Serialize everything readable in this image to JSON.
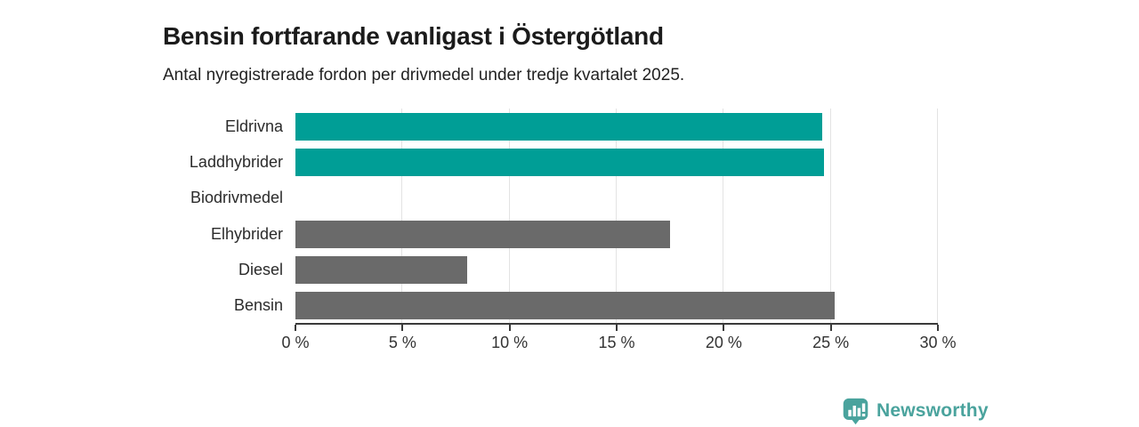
{
  "title": "Bensin fortfarande vanligast i Östergötland",
  "subtitle": "Antal nyregistrerade fordon per drivmedel under tredje kvartalet 2025.",
  "chart_data": {
    "type": "bar",
    "orientation": "horizontal",
    "title": "Bensin fortfarande vanligast i Östergötland",
    "subtitle": "Antal nyregistrerade fordon per drivmedel under tredje kvartalet 2025.",
    "categories": [
      "Eldrivna",
      "Laddhybrider",
      "Biodrivmedel",
      "Elhybrider",
      "Diesel",
      "Bensin"
    ],
    "values": [
      24.6,
      24.7,
      0,
      17.5,
      8.0,
      25.2
    ],
    "unit": "%",
    "xlim": [
      0,
      30
    ],
    "x_tick_step": 5,
    "x_tick_labels": [
      "0 %",
      "5 %",
      "10 %",
      "15 %",
      "20 %",
      "25 %",
      "30 %"
    ],
    "grid": "vertical-light",
    "legend": "none",
    "bar_colors": [
      "#009E96",
      "#009E96",
      "#6A6A6A",
      "#6A6A6A",
      "#6A6A6A",
      "#6A6A6A"
    ],
    "highlight_color": "#009E96",
    "default_color": "#6A6A6A"
  },
  "branding": {
    "logo_text": "Newsworthy",
    "logo_color": "#4AA39D",
    "logo_icon": "newsworthy-pin-barchart-icon"
  }
}
